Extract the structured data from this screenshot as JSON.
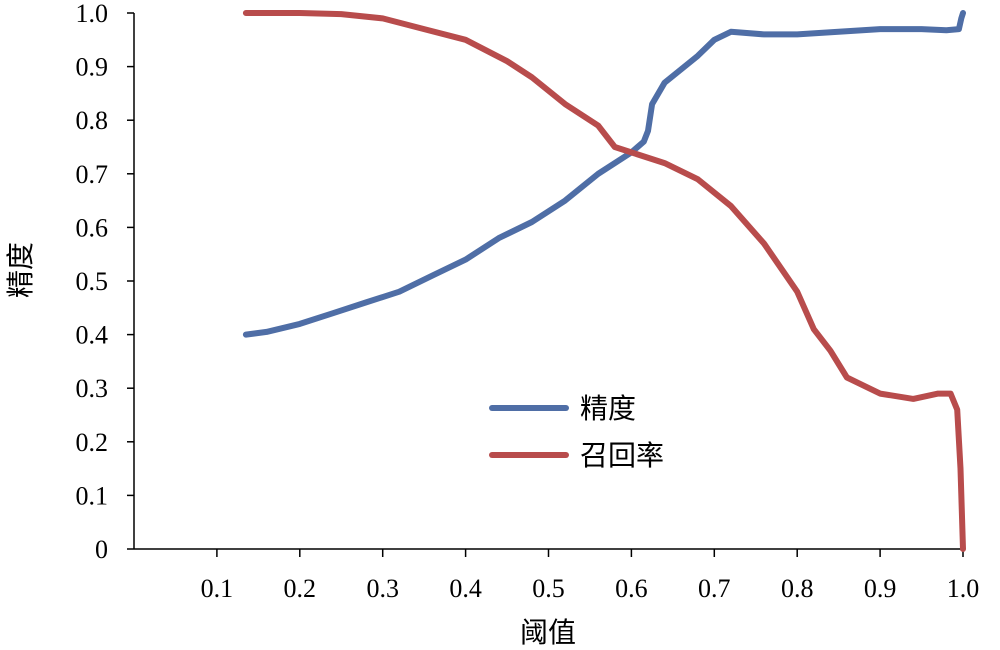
{
  "chart_data": {
    "type": "line",
    "xlabel": "阈值",
    "ylabel": "精度",
    "xlim": [
      0,
      1.0
    ],
    "ylim": [
      0,
      1.0
    ],
    "x_ticks": [
      "0.1",
      "0.2",
      "0.3",
      "0.4",
      "0.5",
      "0.6",
      "0.7",
      "0.8",
      "0.9",
      "1.0"
    ],
    "x_tick_values": [
      0.1,
      0.2,
      0.3,
      0.4,
      0.5,
      0.6,
      0.7,
      0.8,
      0.9,
      1.0
    ],
    "y_ticks": [
      "0",
      "0.1",
      "0.2",
      "0.3",
      "0.4",
      "0.5",
      "0.6",
      "0.7",
      "0.8",
      "0.9",
      "1.0"
    ],
    "y_tick_values": [
      0,
      0.1,
      0.2,
      0.3,
      0.4,
      0.5,
      0.6,
      0.7,
      0.8,
      0.9,
      1.0
    ],
    "grid": false,
    "legend_position": "center-right",
    "series": [
      {
        "name": "精度",
        "color": "#4f6ea6",
        "x": [
          0.135,
          0.16,
          0.2,
          0.24,
          0.28,
          0.32,
          0.36,
          0.4,
          0.44,
          0.48,
          0.52,
          0.56,
          0.6,
          0.615,
          0.62,
          0.625,
          0.64,
          0.68,
          0.7,
          0.72,
          0.76,
          0.8,
          0.85,
          0.9,
          0.95,
          0.98,
          0.995,
          0.998,
          1.0
        ],
        "y": [
          0.4,
          0.405,
          0.42,
          0.44,
          0.46,
          0.48,
          0.51,
          0.54,
          0.58,
          0.61,
          0.65,
          0.7,
          0.74,
          0.76,
          0.78,
          0.83,
          0.87,
          0.92,
          0.95,
          0.965,
          0.96,
          0.96,
          0.965,
          0.97,
          0.97,
          0.968,
          0.97,
          0.99,
          1.0
        ]
      },
      {
        "name": "召回率",
        "color": "#b84c4c",
        "x": [
          0.135,
          0.2,
          0.25,
          0.3,
          0.35,
          0.4,
          0.45,
          0.48,
          0.52,
          0.56,
          0.58,
          0.6,
          0.64,
          0.68,
          0.72,
          0.76,
          0.8,
          0.82,
          0.84,
          0.86,
          0.9,
          0.94,
          0.97,
          0.985,
          0.993,
          0.997,
          1.0
        ],
        "y": [
          1.0,
          1.0,
          0.998,
          0.99,
          0.97,
          0.95,
          0.91,
          0.88,
          0.83,
          0.79,
          0.75,
          0.74,
          0.72,
          0.69,
          0.64,
          0.57,
          0.48,
          0.41,
          0.37,
          0.32,
          0.29,
          0.28,
          0.29,
          0.29,
          0.26,
          0.15,
          0.0
        ]
      }
    ]
  }
}
